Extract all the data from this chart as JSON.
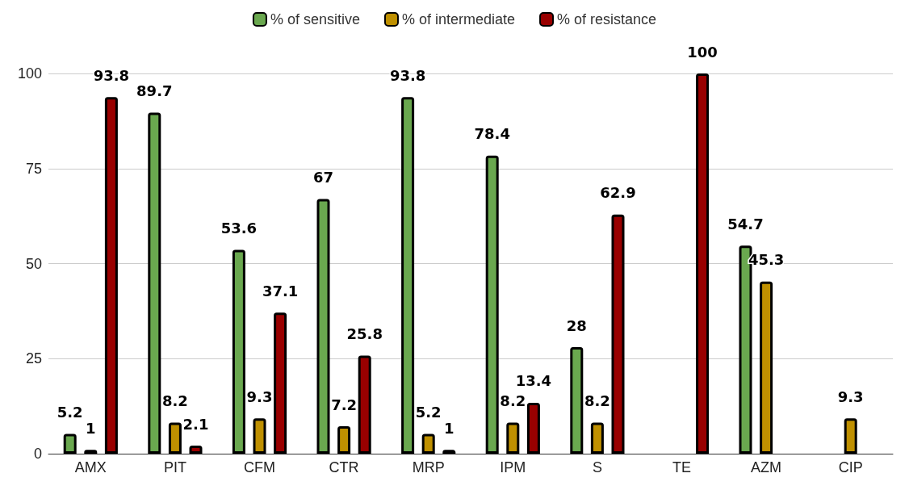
{
  "chart_data": {
    "type": "bar",
    "categories": [
      "AMX",
      "PIT",
      "CFM",
      "CTR",
      "MRP",
      "IPM",
      "S",
      "TE",
      "AZM",
      "CIP"
    ],
    "series": [
      {
        "name": "% of sensitive",
        "color": "#6aa84f",
        "values": [
          5.2,
          89.7,
          53.6,
          67,
          93.8,
          78.4,
          28,
          null,
          54.7,
          null
        ]
      },
      {
        "name": "% of intermediate",
        "color": "#bf9000",
        "values": [
          1,
          8.2,
          9.3,
          7.2,
          5.2,
          8.2,
          8.2,
          null,
          45.3,
          9.3
        ]
      },
      {
        "name": "% of resistance",
        "color": "#990000",
        "values": [
          93.8,
          2.1,
          37.1,
          25.8,
          1,
          13.4,
          62.9,
          100,
          null,
          null
        ]
      }
    ],
    "ylim": [
      0,
      100
    ],
    "yticks": [
      0,
      25,
      50,
      75,
      100
    ],
    "grid": "y",
    "legend": "top",
    "data_labels": true
  }
}
